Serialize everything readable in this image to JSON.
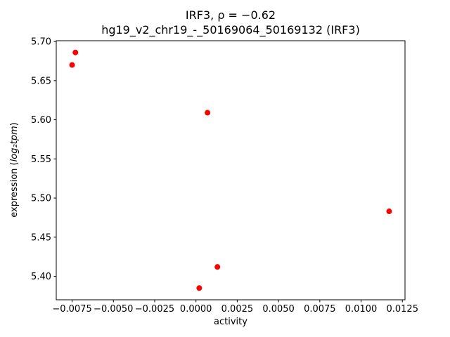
{
  "chart_data": {
    "type": "scatter",
    "title": "IRF3, ρ = −0.62",
    "subtitle": "hg19_v2_chr19_-_50169064_50169132 (IRF3)",
    "xlabel": "activity",
    "ylabel_prefix": "expression (",
    "ylabel_math": "log₂tpm",
    "ylabel_suffix": ")",
    "marker_color": "#ff0000",
    "axis_color": "#000000",
    "xlim": [
      -0.00846,
      0.01266
    ],
    "ylim": [
      5.37,
      5.701
    ],
    "xticks": [
      -0.0075,
      -0.005,
      -0.0025,
      0.0,
      0.0025,
      0.005,
      0.0075,
      0.01,
      0.0125
    ],
    "xtick_labels": [
      "−0.0075",
      "−0.0050",
      "−0.0025",
      "0.0000",
      "0.0025",
      "0.0050",
      "0.0075",
      "0.0100",
      "0.0125"
    ],
    "yticks": [
      5.4,
      5.45,
      5.5,
      5.55,
      5.6,
      5.65,
      5.7
    ],
    "ytick_labels": [
      "5.40",
      "5.45",
      "5.50",
      "5.55",
      "5.60",
      "5.65",
      "5.70"
    ],
    "points": [
      [
        -0.0073,
        5.686
      ],
      [
        -0.0075,
        5.67
      ],
      [
        0.0007,
        5.609
      ],
      [
        0.0117,
        5.483
      ],
      [
        0.0013,
        5.412
      ],
      [
        0.0002,
        5.385
      ]
    ],
    "grid": false,
    "legend": "none"
  }
}
